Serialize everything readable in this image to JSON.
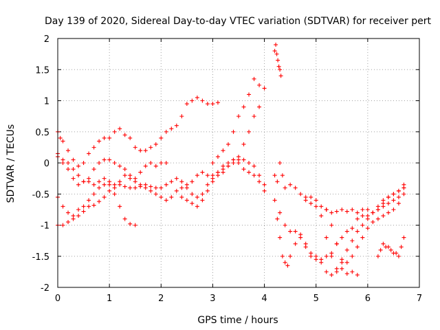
{
  "chart_data": {
    "type": "scatter",
    "title": "Day 139 of 2020, Sidereal Day-to-day VTEC variation (SDTVAR) for receiver pert",
    "xlabel": "GPS time / hours",
    "ylabel": "SDTVAR / TECUs",
    "xlim": [
      0,
      7
    ],
    "ylim": [
      -2,
      2
    ],
    "xticks": [
      "0",
      "1",
      "2",
      "3",
      "4",
      "5",
      "6",
      "7"
    ],
    "yticks": [
      "-2",
      "-1.5",
      "-1",
      "-0.5",
      "0",
      "0.5",
      "1",
      "1.5",
      "2"
    ],
    "grid": true,
    "marker": "+",
    "color": "#ff0000",
    "series": [
      {
        "name": "s1",
        "x": [
          0.0,
          0.05,
          0.1,
          0.2,
          0.3,
          0.4,
          0.5,
          0.6,
          0.7,
          0.8,
          0.9,
          1.0,
          1.1,
          1.2,
          1.3,
          1.4,
          1.5,
          1.6,
          1.7,
          1.8,
          1.9,
          2.0,
          2.1,
          2.2,
          2.3,
          2.4,
          2.5,
          2.6,
          2.7,
          2.8,
          2.9,
          3.0,
          3.1
        ],
        "y": [
          0.5,
          0.4,
          0.35,
          0.2,
          0.05,
          -0.05,
          0.0,
          0.15,
          0.25,
          0.35,
          0.4,
          0.4,
          0.5,
          0.55,
          0.45,
          0.4,
          0.25,
          0.2,
          0.2,
          0.25,
          0.3,
          0.4,
          0.5,
          0.55,
          0.6,
          0.75,
          0.95,
          1.0,
          1.05,
          1.0,
          0.95,
          0.95,
          0.97
        ]
      },
      {
        "name": "s2",
        "x": [
          0.0,
          0.1,
          0.2,
          0.3,
          0.4,
          0.5,
          0.6,
          0.7,
          0.8,
          0.9,
          1.0,
          1.1,
          1.2,
          1.3,
          1.4,
          1.5,
          1.6,
          1.7,
          1.8,
          1.9,
          2.0,
          2.1
        ],
        "y": [
          0.15,
          0.05,
          0.0,
          -0.1,
          -0.2,
          -0.3,
          -0.25,
          -0.1,
          0.0,
          0.05,
          0.05,
          0.0,
          -0.05,
          -0.1,
          -0.2,
          -0.25,
          -0.15,
          -0.05,
          0.0,
          -0.05,
          0.0,
          0.0
        ]
      },
      {
        "name": "s3",
        "x": [
          0.0,
          0.1,
          0.2,
          0.3,
          0.4,
          0.5,
          0.6,
          0.7,
          0.8,
          0.9,
          1.0,
          1.1,
          1.2,
          1.3,
          1.4,
          1.5
        ],
        "y": [
          -0.55,
          -0.7,
          -0.8,
          -0.85,
          -0.75,
          -0.7,
          -0.6,
          -0.5,
          -0.4,
          -0.35,
          -0.35,
          -0.5,
          -0.7,
          -0.9,
          -0.98,
          -1.0
        ]
      },
      {
        "name": "s4",
        "x": [
          0.0,
          0.1,
          0.2,
          0.3,
          0.4,
          0.5,
          0.6,
          0.7,
          0.8,
          0.9,
          1.0,
          1.1,
          1.2,
          1.3,
          1.4,
          1.5,
          1.6,
          1.7,
          1.8,
          1.9,
          2.0,
          2.1,
          2.2,
          2.3,
          2.4,
          2.5,
          2.6,
          2.7,
          2.8,
          2.9,
          3.0,
          3.1,
          3.2,
          3.3,
          3.4,
          3.5,
          3.6,
          3.7,
          3.8,
          3.9,
          4.0
        ],
        "y": [
          -1.0,
          -1.0,
          -0.95,
          -0.9,
          -0.85,
          -0.78,
          -0.7,
          -0.68,
          -0.62,
          -0.55,
          -0.45,
          -0.4,
          -0.35,
          -0.38,
          -0.4,
          -0.4,
          -0.38,
          -0.35,
          -0.38,
          -0.4,
          -0.4,
          -0.35,
          -0.3,
          -0.25,
          -0.3,
          -0.4,
          -0.5,
          -0.55,
          -0.5,
          -0.35,
          -0.25,
          -0.15,
          -0.1,
          -0.05,
          0.0,
          0.05,
          0.05,
          0.0,
          -0.05,
          -0.2,
          -0.45
        ]
      },
      {
        "name": "s5",
        "x": [
          0.0,
          0.1,
          0.2,
          0.3,
          0.4,
          0.5,
          0.6,
          0.7,
          0.8,
          0.9,
          1.0,
          1.1,
          1.2,
          1.3,
          1.4,
          1.5,
          1.6,
          1.7,
          1.8,
          1.9,
          2.0,
          2.1,
          2.2,
          2.3,
          2.4,
          2.5,
          2.6,
          2.7,
          2.8,
          2.9,
          3.0,
          3.1,
          3.2,
          3.3,
          3.4,
          3.5,
          3.6,
          3.7,
          3.8,
          3.9,
          4.0
        ],
        "y": [
          0.1,
          0.0,
          -0.1,
          -0.25,
          -0.35,
          -0.3,
          -0.3,
          -0.35,
          -0.3,
          -0.25,
          -0.3,
          -0.35,
          -0.3,
          -0.2,
          -0.25,
          -0.3,
          -0.35,
          -0.4,
          -0.45,
          -0.5,
          -0.55,
          -0.6,
          -0.55,
          -0.45,
          -0.4,
          -0.35,
          -0.3,
          -0.2,
          -0.15,
          -0.2,
          -0.2,
          -0.15,
          -0.05,
          0.0,
          0.05,
          0.0,
          -0.1,
          -0.15,
          -0.2,
          -0.3,
          -0.35
        ]
      },
      {
        "name": "s6",
        "x": [
          3.0,
          3.1,
          3.2,
          3.3,
          3.4,
          3.5,
          3.6,
          3.7,
          3.8,
          3.9,
          4.0
        ],
        "y": [
          0.0,
          0.1,
          0.2,
          0.3,
          0.5,
          0.75,
          0.9,
          1.1,
          1.35,
          1.25,
          1.2
        ]
      },
      {
        "name": "s7",
        "x": [
          2.4,
          2.5,
          2.6,
          2.7,
          2.8,
          2.9,
          3.0,
          3.1,
          3.2,
          3.3,
          3.4,
          3.5,
          3.6,
          3.7,
          3.8,
          3.9
        ],
        "y": [
          -0.55,
          -0.6,
          -0.65,
          -0.7,
          -0.6,
          -0.45,
          -0.3,
          -0.2,
          -0.15,
          -0.05,
          0.05,
          0.1,
          0.3,
          0.5,
          0.75,
          0.9
        ]
      },
      {
        "name": "s8",
        "x": [
          4.2,
          4.22,
          4.24,
          4.26,
          4.28,
          4.3,
          4.32
        ],
        "y": [
          1.8,
          1.9,
          1.75,
          1.65,
          1.55,
          1.5,
          1.4
        ]
      },
      {
        "name": "s9",
        "x": [
          4.2,
          4.25,
          4.3,
          4.35,
          4.4,
          4.5,
          4.6,
          4.7,
          4.8,
          4.9,
          5.0,
          5.1,
          5.2,
          5.3,
          5.4,
          5.5,
          5.6,
          5.7,
          5.8,
          5.9,
          6.0,
          6.1,
          6.2,
          6.3,
          6.4,
          6.5,
          6.6,
          6.7
        ],
        "y": [
          -0.2,
          -0.3,
          0.0,
          -0.2,
          -0.4,
          -0.35,
          -0.4,
          -0.5,
          -0.55,
          -0.55,
          -0.6,
          -0.7,
          -0.75,
          -0.8,
          -0.78,
          -0.75,
          -0.78,
          -0.75,
          -0.8,
          -0.75,
          -0.75,
          -0.8,
          -0.7,
          -0.6,
          -0.55,
          -0.5,
          -0.45,
          -0.35
        ]
      },
      {
        "name": "s10",
        "x": [
          4.2,
          4.25,
          4.3,
          4.35,
          4.4,
          4.45,
          4.5,
          4.6,
          4.7,
          4.8,
          4.9,
          5.0,
          5.1,
          5.2,
          5.3,
          5.4,
          5.5,
          5.6,
          5.7,
          5.8
        ],
        "y": [
          -0.6,
          -0.9,
          -1.2,
          -1.5,
          -1.6,
          -1.65,
          -1.5,
          -1.3,
          -1.15,
          -1.3,
          -1.5,
          -1.55,
          -1.6,
          -1.75,
          -1.8,
          -1.75,
          -1.7,
          -1.78,
          -1.75,
          -1.8
        ]
      },
      {
        "name": "s11",
        "x": [
          4.3,
          4.4,
          4.5,
          4.6,
          4.7,
          4.8,
          4.9,
          5.0,
          5.1,
          5.2,
          5.3,
          5.4,
          5.5,
          5.6,
          5.7,
          5.8,
          5.9,
          6.0,
          6.1,
          6.2,
          6.3,
          6.4,
          6.5,
          6.6,
          6.7
        ],
        "y": [
          -0.8,
          -1.0,
          -1.1,
          -1.1,
          -1.2,
          -1.35,
          -1.45,
          -1.5,
          -1.55,
          -1.5,
          -1.45,
          -1.3,
          -1.2,
          -1.1,
          -1.05,
          -0.9,
          -0.85,
          -0.85,
          -0.8,
          -0.75,
          -0.7,
          -0.65,
          -0.6,
          -0.55,
          -0.4
        ]
      },
      {
        "name": "s12",
        "x": [
          4.8,
          4.9,
          5.0,
          5.1,
          5.2,
          5.3,
          5.4,
          5.5,
          5.6,
          5.7,
          5.8,
          5.9,
          6.0,
          6.1,
          6.2,
          6.3,
          6.4,
          6.5,
          6.6,
          6.7
        ],
        "y": [
          -0.6,
          -0.65,
          -0.7,
          -0.85,
          -1.2,
          -1.5,
          -1.7,
          -1.6,
          -1.4,
          -1.25,
          -1.1,
          -1.0,
          -0.9,
          -0.8,
          -0.75,
          -0.65,
          -0.55,
          -0.5,
          -0.45,
          -0.4
        ]
      },
      {
        "name": "s13",
        "x": [
          5.2,
          5.3,
          5.4,
          5.5,
          5.6,
          5.7,
          5.8,
          5.9,
          6.0,
          6.1,
          6.2,
          6.3,
          6.4,
          6.5,
          6.6,
          6.7
        ],
        "y": [
          -0.75,
          -1.0,
          -1.3,
          -1.55,
          -1.6,
          -1.5,
          -1.35,
          -1.2,
          -1.05,
          -0.95,
          -0.9,
          -0.85,
          -0.8,
          -0.75,
          -0.65,
          -0.5
        ]
      },
      {
        "name": "s14",
        "x": [
          6.2,
          6.25,
          6.3,
          6.35,
          6.4,
          6.45,
          6.5,
          6.55,
          6.6,
          6.65,
          6.7
        ],
        "y": [
          -1.5,
          -1.4,
          -1.3,
          -1.35,
          -1.35,
          -1.4,
          -1.45,
          -1.45,
          -1.5,
          -1.35,
          -1.2
        ]
      }
    ]
  }
}
